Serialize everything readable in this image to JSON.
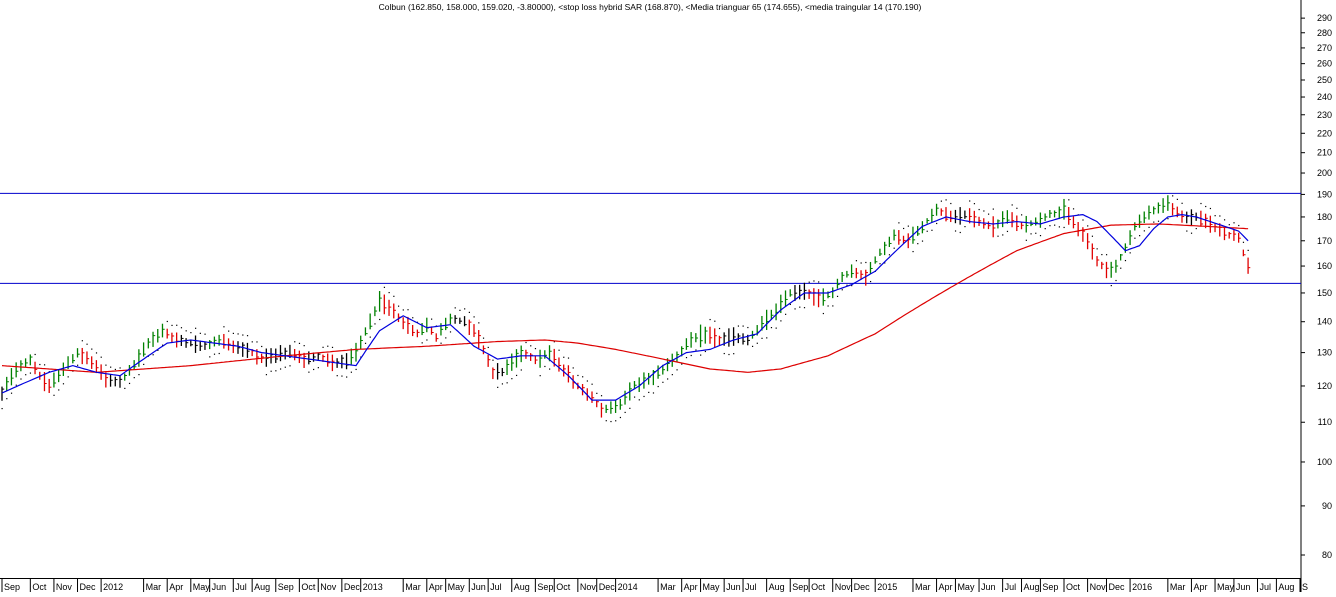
{
  "chart_data": {
    "type": "bar",
    "title": "Colbun (162.850, 158.000, 159.020, -3.80000), <stop loss hybrid SAR (168.870), <Media trianguar 65 (174.655), <media traingular 14 (170.190)",
    "y_scale": "log",
    "ylim": [
      75,
      300
    ],
    "y_ticks": [
      80,
      90,
      100,
      110,
      120,
      130,
      140,
      150,
      160,
      170,
      180,
      190,
      200,
      210,
      220,
      230,
      240,
      250,
      260,
      270,
      280,
      290
    ],
    "x_ticks": [
      {
        "i": 0,
        "label": "Sep"
      },
      {
        "i": 6,
        "label": "Oct"
      },
      {
        "i": 11,
        "label": "Nov"
      },
      {
        "i": 16,
        "label": "Dec"
      },
      {
        "i": 21,
        "label": "2012"
      },
      {
        "i": 30,
        "label": "Mar"
      },
      {
        "i": 35,
        "label": "Apr"
      },
      {
        "i": 40,
        "label": "May"
      },
      {
        "i": 44,
        "label": "Jun"
      },
      {
        "i": 49,
        "label": "Jul"
      },
      {
        "i": 53,
        "label": "Aug"
      },
      {
        "i": 58,
        "label": "Sep"
      },
      {
        "i": 63,
        "label": "Oct"
      },
      {
        "i": 67,
        "label": "Nov"
      },
      {
        "i": 72,
        "label": "Dec"
      },
      {
        "i": 76,
        "label": "2013"
      },
      {
        "i": 85,
        "label": "Mar"
      },
      {
        "i": 90,
        "label": "Apr"
      },
      {
        "i": 94,
        "label": "May"
      },
      {
        "i": 99,
        "label": "Jun"
      },
      {
        "i": 103,
        "label": "Jul"
      },
      {
        "i": 108,
        "label": "Aug"
      },
      {
        "i": 113,
        "label": "Sep"
      },
      {
        "i": 117,
        "label": "Oct"
      },
      {
        "i": 122,
        "label": "Nov"
      },
      {
        "i": 126,
        "label": "Dec"
      },
      {
        "i": 130,
        "label": "2014"
      },
      {
        "i": 139,
        "label": "Mar"
      },
      {
        "i": 144,
        "label": "Apr"
      },
      {
        "i": 148,
        "label": "May"
      },
      {
        "i": 153,
        "label": "Jun"
      },
      {
        "i": 157,
        "label": "Jul"
      },
      {
        "i": 162,
        "label": "Aug"
      },
      {
        "i": 167,
        "label": "Sep"
      },
      {
        "i": 171,
        "label": "Oct"
      },
      {
        "i": 176,
        "label": "Nov"
      },
      {
        "i": 180,
        "label": "Dec"
      },
      {
        "i": 185,
        "label": "2015"
      },
      {
        "i": 193,
        "label": "Mar"
      },
      {
        "i": 198,
        "label": "Apr"
      },
      {
        "i": 202,
        "label": "May"
      },
      {
        "i": 207,
        "label": "Jun"
      },
      {
        "i": 212,
        "label": "Jul"
      },
      {
        "i": 216,
        "label": "Aug"
      },
      {
        "i": 220,
        "label": "Sep"
      },
      {
        "i": 225,
        "label": "Oct"
      },
      {
        "i": 230,
        "label": "Nov"
      },
      {
        "i": 234,
        "label": "Dec"
      },
      {
        "i": 239,
        "label": "2016"
      },
      {
        "i": 247,
        "label": "Mar"
      },
      {
        "i": 252,
        "label": "Apr"
      },
      {
        "i": 257,
        "label": "May"
      },
      {
        "i": 261,
        "label": "Jun"
      },
      {
        "i": 266,
        "label": "Jul"
      },
      {
        "i": 270,
        "label": "Aug"
      },
      {
        "i": 275,
        "label": "S"
      }
    ],
    "period_count": 277,
    "hlines": [
      {
        "value": 190.5,
        "color": "#0000cc"
      },
      {
        "value": 153.5,
        "color": "#0000cc"
      }
    ],
    "colors": {
      "up": "#008000",
      "down": "#e00000",
      "neutral": "#000000",
      "ma65": "#dd0000",
      "ma14": "#0000dd",
      "sar": "#000000",
      "grid_axis": "#000000",
      "background": "#ffffff"
    },
    "series": [
      {
        "name": "Colbun",
        "kind": "ohlc"
      },
      {
        "name": "stop loss hybrid SAR",
        "kind": "dots"
      },
      {
        "name": "Media trianguar 65",
        "kind": "line"
      },
      {
        "name": "media traingular 14",
        "kind": "line"
      }
    ],
    "price_path_x": [
      0,
      3,
      6,
      8,
      10,
      13,
      16,
      19,
      22,
      25,
      28,
      31,
      34,
      37,
      40,
      43,
      46,
      49,
      52,
      55,
      58,
      61,
      64,
      67,
      70,
      73,
      75,
      78,
      80,
      82,
      85,
      88,
      90,
      92,
      95,
      98,
      100,
      102,
      104,
      106,
      108,
      110,
      113,
      116,
      119,
      122,
      125,
      127,
      129,
      131,
      134,
      137,
      140,
      143,
      146,
      149,
      152,
      155,
      158,
      161,
      164,
      167,
      170,
      173,
      176,
      178,
      180,
      183,
      186,
      189,
      192,
      195,
      198,
      201,
      204,
      207,
      210,
      213,
      216,
      219,
      222,
      225,
      227,
      230,
      232,
      234,
      236,
      238,
      240,
      242,
      244,
      247,
      250,
      253,
      256,
      259,
      262,
      263,
      264
    ],
    "price_path_y": [
      118,
      125,
      128,
      123,
      120,
      125,
      130,
      127,
      122,
      121,
      126,
      133,
      137,
      134,
      133,
      132,
      134,
      132,
      131,
      128,
      129,
      130,
      128,
      129,
      127,
      127,
      130,
      140,
      147,
      145,
      140,
      136,
      139,
      135,
      141,
      140,
      137,
      131,
      124,
      124,
      127,
      130,
      128,
      130,
      125,
      120,
      117,
      113,
      114,
      115,
      120,
      122,
      125,
      129,
      134,
      136,
      134,
      135,
      134,
      139,
      144,
      150,
      151,
      148,
      150,
      156,
      158,
      156,
      165,
      172,
      170,
      176,
      183,
      180,
      181,
      178,
      176,
      180,
      176,
      178,
      181,
      183,
      178,
      170,
      162,
      158,
      160,
      167,
      176,
      180,
      183,
      186,
      180,
      180,
      177,
      173,
      171,
      165,
      160
    ],
    "ma65_path_x": [
      0,
      20,
      40,
      60,
      75,
      90,
      105,
      115,
      122,
      130,
      140,
      150,
      158,
      165,
      175,
      185,
      195,
      205,
      215,
      225,
      235,
      245,
      255,
      264
    ],
    "ma65_path_y": [
      126,
      124,
      126,
      129,
      131,
      132,
      133.5,
      134,
      133,
      131,
      128,
      125,
      124,
      125,
      129,
      136,
      146,
      156,
      166,
      173,
      176.5,
      177,
      176,
      175
    ],
    "ma14_path_x": [
      0,
      5,
      10,
      15,
      20,
      25,
      30,
      35,
      40,
      45,
      50,
      55,
      60,
      65,
      70,
      75,
      80,
      85,
      90,
      95,
      100,
      105,
      110,
      115,
      120,
      125,
      130,
      135,
      140,
      145,
      150,
      155,
      160,
      165,
      170,
      175,
      180,
      185,
      190,
      195,
      200,
      205,
      210,
      215,
      220,
      225,
      229,
      232,
      235,
      238,
      241,
      244,
      247,
      250,
      253,
      256,
      259,
      262,
      264
    ],
    "ma14_path_y": [
      118,
      121,
      124,
      126,
      124,
      123,
      128,
      133,
      134,
      133,
      132,
      130,
      129,
      128,
      127,
      126,
      137,
      142,
      138,
      139,
      132,
      128,
      129,
      129,
      123,
      116,
      116,
      120,
      126,
      130,
      131,
      134,
      136,
      144,
      150,
      150,
      153,
      158,
      167,
      176,
      180,
      178,
      177,
      178,
      177,
      180,
      181,
      178,
      172,
      166,
      168,
      175,
      180,
      181,
      180,
      178,
      176,
      174,
      170
    ]
  }
}
